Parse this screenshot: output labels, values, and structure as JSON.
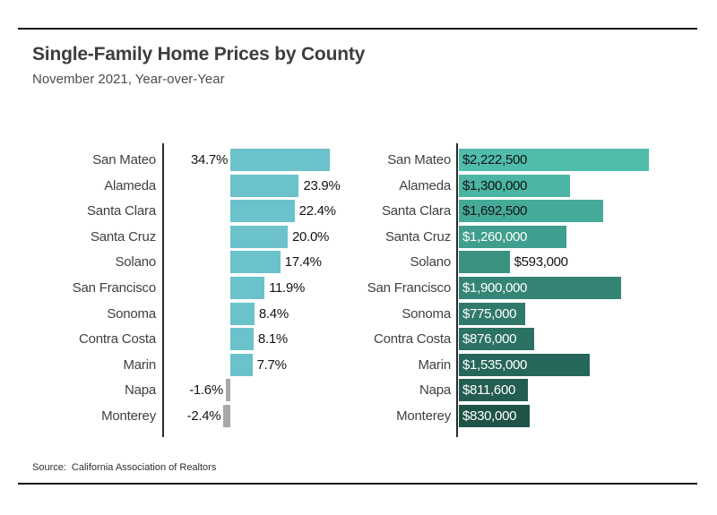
{
  "header": {
    "title": "Single-Family Home Prices by County",
    "subtitle": "November 2021, Year-over-Year"
  },
  "footer": {
    "source_label": "Source:",
    "source_value": "California Association of Realtors"
  },
  "colors": {
    "rule": "#141414",
    "axis": "#2b2b2b",
    "pct_positive_bar": "#6bc2cb",
    "pct_negative_bar": "#a8a8a8",
    "value_label_dark": "#141414",
    "value_label_light": "#ffffff"
  },
  "chart_data": [
    {
      "type": "bar",
      "name": "yoy-percent-change",
      "orientation": "horizontal",
      "value_format": "percent",
      "categories": [
        "San Mateo",
        "Alameda",
        "Santa Clara",
        "Santa Cruz",
        "Solano",
        "San Francisco",
        "Sonoma",
        "Contra Costa",
        "Marin",
        "Napa",
        "Monterey"
      ],
      "values": [
        34.7,
        23.9,
        22.4,
        20.0,
        17.4,
        11.9,
        8.4,
        8.1,
        7.7,
        -1.6,
        -2.4
      ],
      "labels": [
        "34.7%",
        "23.9%",
        "22.4%",
        "20.0%",
        "17.4%",
        "11.9%",
        "8.4%",
        "8.1%",
        "7.7%",
        "-1.6%",
        "-2.4%"
      ],
      "label_side": [
        "left",
        "right",
        "right",
        "right",
        "right",
        "right",
        "right",
        "right",
        "right",
        "left",
        "left"
      ],
      "positive_color": "#6bc2cb",
      "negative_color": "#a8a8a8",
      "xlim": [
        -25,
        35
      ],
      "grid": false,
      "legend": false
    },
    {
      "type": "bar",
      "name": "median-price",
      "orientation": "horizontal",
      "value_format": "currency",
      "categories": [
        "San Mateo",
        "Alameda",
        "Santa Clara",
        "Santa Cruz",
        "Solano",
        "San Francisco",
        "Sonoma",
        "Contra Costa",
        "Marin",
        "Napa",
        "Monterey"
      ],
      "values": [
        2222500,
        1300000,
        1692500,
        1260000,
        593000,
        1900000,
        775000,
        876000,
        1535000,
        811600,
        830000
      ],
      "labels": [
        "$2,222,500",
        "$1,300,000",
        "$1,692,500",
        "$1,260,000",
        "$593,000",
        "$1,900,000",
        "$775,000",
        "$876,000",
        "$1,535,000",
        "$811,600",
        "$830,000"
      ],
      "bar_colors": [
        "#50bdab",
        "#4bb4a2",
        "#45aa98",
        "#3f9e8d",
        "#3a9281",
        "#358576",
        "#2f7a6c",
        "#2b7164",
        "#27665a",
        "#235c50",
        "#1f5348"
      ],
      "label_inside": [
        true,
        true,
        true,
        true,
        false,
        true,
        true,
        true,
        true,
        true,
        true
      ],
      "label_colors": [
        "#141414",
        "#141414",
        "#141414",
        "#ffffff",
        "#141414",
        "#ffffff",
        "#ffffff",
        "#ffffff",
        "#ffffff",
        "#ffffff",
        "#ffffff"
      ],
      "xlim": [
        0,
        2330000
      ],
      "grid": false,
      "legend": false
    }
  ]
}
